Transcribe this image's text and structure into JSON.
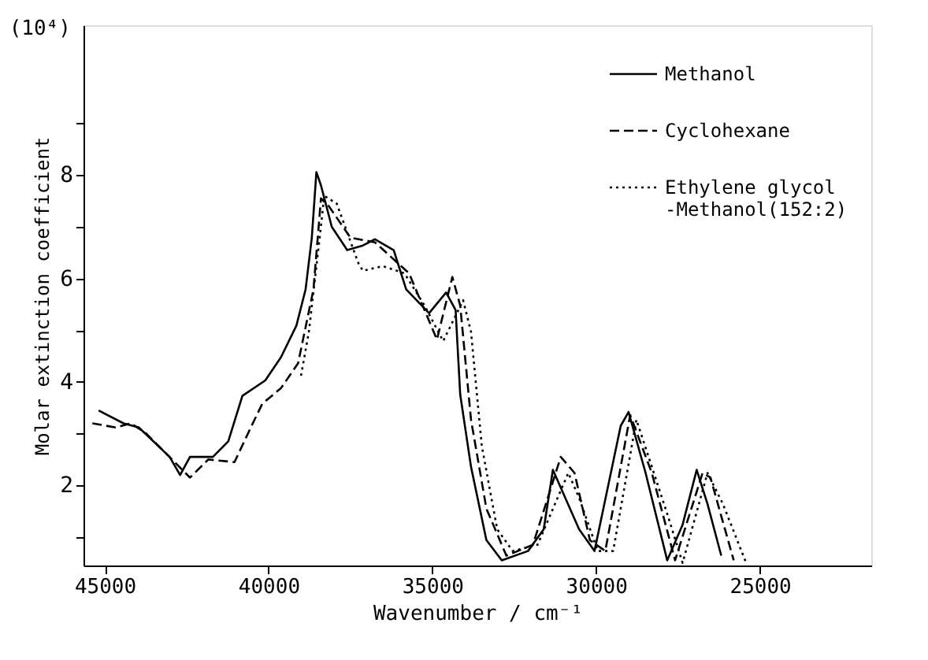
{
  "chart_data": {
    "type": "line",
    "xlabel": "Wavenumber / cm⁻¹",
    "ylabel": "Molar extinction coefficient",
    "annotations": [
      "(10⁴)"
    ],
    "xlim": [
      45650,
      21600
    ],
    "xticks": [
      45000,
      40000,
      35000,
      30000,
      25000
    ],
    "ylim": [
      0.45,
      10.9
    ],
    "yticks": [
      {
        "value": 1,
        "label": null
      },
      2,
      {
        "value": 3,
        "label": null
      },
      4,
      {
        "value": 5,
        "label": null
      },
      6,
      {
        "value": 7,
        "label": null
      },
      8,
      {
        "value": 9,
        "label": null
      }
    ],
    "grid": false,
    "legend": "top right",
    "marker": "none",
    "series": [
      {
        "name": "Methanol",
        "color": "#000000",
        "line_style": "solid",
        "x": [
          45190,
          44430,
          43960,
          43020,
          42700,
          42400,
          41700,
          41230,
          40800,
          40100,
          39620,
          39150,
          38870,
          38680,
          38540,
          38400,
          38070,
          37600,
          37120,
          36750,
          36180,
          35800,
          35100,
          34580,
          34290,
          34150,
          33820,
          33350,
          32880,
          32080,
          31600,
          31320,
          30520,
          30050,
          29250,
          29010,
          28490,
          27830,
          27360,
          26930,
          26600,
          26180
        ],
        "values": [
          3.45,
          3.2,
          3.12,
          2.55,
          2.2,
          2.55,
          2.55,
          2.85,
          3.73,
          4.03,
          4.48,
          5.09,
          5.79,
          6.79,
          8.06,
          7.8,
          7.0,
          6.55,
          6.64,
          6.76,
          6.55,
          5.79,
          5.33,
          5.73,
          5.39,
          3.76,
          2.36,
          0.94,
          0.55,
          0.73,
          1.15,
          2.3,
          1.15,
          0.73,
          3.15,
          3.42,
          2.24,
          0.55,
          1.24,
          2.3,
          1.64,
          0.64
        ]
      },
      {
        "name": "Cyclohexane",
        "color": "#000000",
        "line_style": "dashed",
        "x": [
          45380,
          44670,
          44200,
          43730,
          42400,
          41840,
          41040,
          40520,
          40190,
          39620,
          39100,
          38630,
          38400,
          38160,
          37500,
          36750,
          35710,
          34860,
          34390,
          34150,
          33820,
          33350,
          32740,
          31930,
          31080,
          30660,
          30190,
          29720,
          28960,
          28300,
          27590,
          26750,
          26510,
          25800
        ],
        "values": [
          3.2,
          3.12,
          3.2,
          3.0,
          2.15,
          2.5,
          2.45,
          3.15,
          3.58,
          3.88,
          4.36,
          5.79,
          7.55,
          7.4,
          6.79,
          6.7,
          6.1,
          4.82,
          6.03,
          5.48,
          3.27,
          1.55,
          0.64,
          0.85,
          2.55,
          2.24,
          0.94,
          0.73,
          3.36,
          2.24,
          0.55,
          2.24,
          2.15,
          0.55
        ]
      },
      {
        "name": "Ethylene glycol\n-Methanol(152:2)",
        "color": "#000000",
        "line_style": "dotted",
        "x": [
          39010,
          38770,
          38440,
          38300,
          37920,
          37260,
          37120,
          36510,
          35850,
          35240,
          34670,
          34060,
          33820,
          33490,
          33020,
          32550,
          31790,
          30850,
          30520,
          29950,
          29480,
          28770,
          27830,
          27360,
          26600,
          26130,
          25420
        ],
        "values": [
          4.12,
          4.97,
          6.79,
          7.6,
          7.45,
          6.3,
          6.15,
          6.24,
          6.1,
          5.48,
          4.79,
          5.58,
          4.97,
          2.76,
          1.15,
          0.73,
          0.85,
          2.24,
          1.76,
          0.73,
          0.73,
          3.27,
          1.45,
          0.5,
          2.24,
          1.64,
          0.5
        ]
      }
    ]
  }
}
